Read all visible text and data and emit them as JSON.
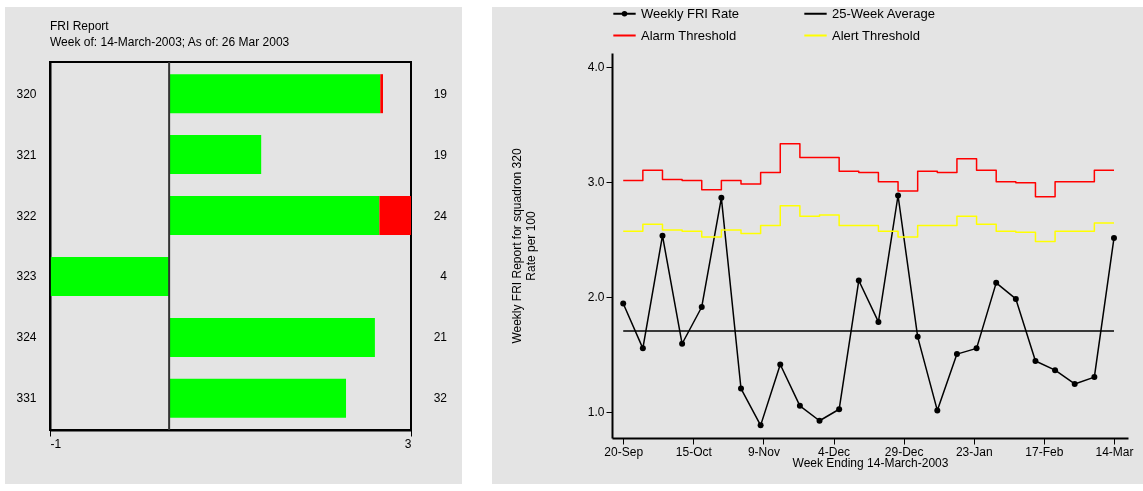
{
  "chart_data": [
    {
      "type": "bar",
      "orientation": "horizontal",
      "title": "FRI Report",
      "subtitle": "Week of: 14-March-2003; As of: 26 Mar 2003",
      "categories": [
        "320",
        "321",
        "322",
        "323",
        "324",
        "331"
      ],
      "y2_categories": [
        "19",
        "19",
        "24",
        "4",
        "21",
        "32"
      ],
      "series": [
        {
          "color": "#00ff00",
          "base": [
            0.32,
            0.32,
            0.32,
            0.32,
            0.32,
            0.32
          ],
          "values": [
            2.34,
            1.02,
            2.33,
            -1.31,
            2.28,
            1.96
          ]
        },
        {
          "color": "#ff0000",
          "base": [
            2.66,
            null,
            2.65,
            null,
            null,
            null
          ],
          "values": [
            0.03,
            null,
            0.35,
            null,
            null,
            null
          ]
        }
      ],
      "xlim": [
        -1,
        3
      ],
      "xticks": [
        -1,
        3
      ],
      "ref_lines": [
        {
          "axis": "x",
          "value": 0.32
        }
      ],
      "grid": false
    },
    {
      "type": "line",
      "xlabel": "Week Ending 14-March-2003",
      "ylabel": "Weekly FRI Report for squadron 320\nRate per 100",
      "x": [
        "2002-09-20",
        "2002-09-27",
        "2002-10-04",
        "2002-10-11",
        "2002-10-18",
        "2002-10-25",
        "2002-11-01",
        "2002-11-08",
        "2002-11-15",
        "2002-11-22",
        "2002-11-29",
        "2002-12-06",
        "2002-12-13",
        "2002-12-20",
        "2002-12-27",
        "2003-01-03",
        "2003-01-10",
        "2003-01-17",
        "2003-01-24",
        "2003-01-31",
        "2003-02-07",
        "2003-02-14",
        "2003-02-21",
        "2003-02-28",
        "2003-03-07",
        "2003-03-14"
      ],
      "series": [
        {
          "name": "Weekly FRI Rate",
          "type": "line",
          "marker": "circle",
          "color": "#000000",
          "values": [
            1.94,
            1.55,
            2.53,
            1.59,
            1.91,
            2.86,
            1.2,
            0.88,
            1.41,
            1.05,
            0.92,
            1.02,
            2.14,
            1.78,
            2.88,
            1.65,
            1.01,
            1.5,
            1.55,
            2.12,
            1.98,
            1.44,
            1.36,
            1.24,
            1.3,
            2.51
          ]
        },
        {
          "name": "25-Week Average",
          "type": "line",
          "color": "#000000",
          "values": [
            1.7,
            1.7,
            1.7,
            1.7,
            1.7,
            1.7,
            1.7,
            1.7,
            1.7,
            1.7,
            1.7,
            1.7,
            1.7,
            1.7,
            1.7,
            1.7,
            1.7,
            1.7,
            1.7,
            1.7,
            1.7,
            1.7,
            1.7,
            1.7,
            1.7,
            1.7
          ]
        },
        {
          "name": "Alarm Threshold",
          "type": "step",
          "color": "#ff0000",
          "values": [
            3.01,
            3.1,
            3.02,
            3.01,
            2.93,
            3.01,
            2.98,
            3.08,
            3.33,
            3.21,
            3.21,
            3.09,
            3.08,
            3.0,
            2.92,
            3.09,
            3.08,
            3.2,
            3.1,
            3.0,
            2.99,
            2.87,
            3.0,
            3.0,
            3.1,
            3.1
          ]
        },
        {
          "name": "Alert Threshold",
          "type": "step",
          "color": "#ffff00",
          "values": [
            2.57,
            2.63,
            2.58,
            2.57,
            2.52,
            2.58,
            2.55,
            2.62,
            2.79,
            2.7,
            2.71,
            2.62,
            2.62,
            2.57,
            2.52,
            2.62,
            2.62,
            2.7,
            2.63,
            2.57,
            2.56,
            2.48,
            2.57,
            2.57,
            2.64,
            2.64
          ]
        }
      ],
      "xlim": [
        "2002-09-16",
        "2003-03-19"
      ],
      "xticks": [
        {
          "value": "2002-09-20",
          "label": "20-Sep"
        },
        {
          "value": "2002-10-15",
          "label": "15-Oct"
        },
        {
          "value": "2002-11-09",
          "label": "9-Nov"
        },
        {
          "value": "2002-12-04",
          "label": "4-Dec"
        },
        {
          "value": "2002-12-29",
          "label": "29-Dec"
        },
        {
          "value": "2003-01-23",
          "label": "23-Jan"
        },
        {
          "value": "2003-02-17",
          "label": "17-Feb"
        },
        {
          "value": "2003-03-14",
          "label": "14-Mar"
        }
      ],
      "ylim": [
        0.77,
        4.12
      ],
      "yticks": [
        {
          "value": 1,
          "label": "1.0"
        },
        {
          "value": 2,
          "label": "2.0"
        },
        {
          "value": 3,
          "label": "3.0"
        },
        {
          "value": 4,
          "label": "4.0"
        }
      ],
      "grid": false,
      "legend": "top"
    }
  ]
}
